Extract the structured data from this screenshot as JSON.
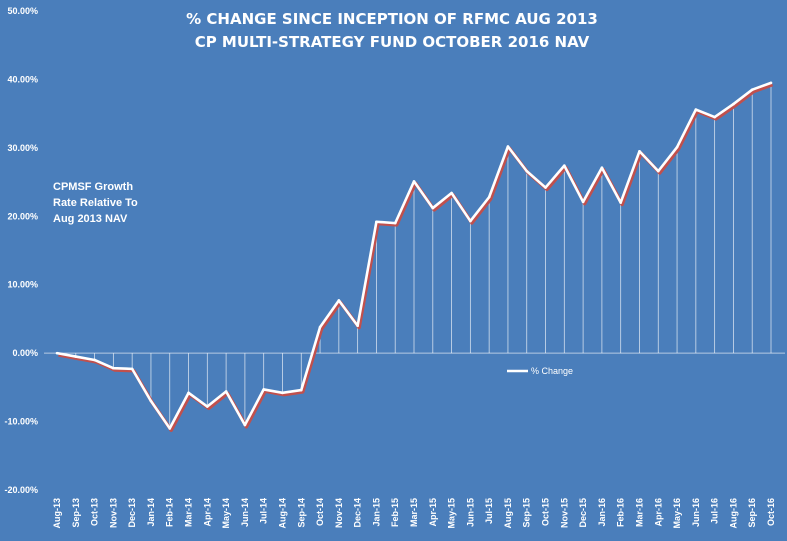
{
  "chart_data": {
    "type": "line",
    "title_lines": [
      "% CHANGE SINCE INCEPTION OF RFMC AUG 2013",
      "CP MULTI-STRATEGY FUND OCTOBER 2016 NAV"
    ],
    "annotation_lines": [
      "CPMSF Growth",
      "Rate Relative To",
      "Aug  2013 NAV"
    ],
    "legend": {
      "position": "center-right",
      "entries": [
        "% Change"
      ]
    },
    "x": [
      "Aug-13",
      "Sep-13",
      "Oct-13",
      "Nov-13",
      "Dec-13",
      "Jan-14",
      "Feb-14",
      "Mar-14",
      "Apr-14",
      "May-14",
      "Jun-14",
      "Jul-14",
      "Aug-14",
      "Sep-14",
      "Oct-14",
      "Nov-14",
      "Dec-14",
      "Jan-15",
      "Feb-15",
      "Mar-15",
      "Apr-15",
      "May-15",
      "Jun-15",
      "Jul-15",
      "Aug-15",
      "Sep-15",
      "Oct-15",
      "Nov-15",
      "Dec-15",
      "Jan-16",
      "Feb-16",
      "Mar-16",
      "Apr-16",
      "May-16",
      "Jun-16",
      "Jul-16",
      "Aug-16",
      "Sep-16",
      "Oct-16"
    ],
    "series": [
      {
        "name": "% Change",
        "values": [
          0.0,
          -0.5,
          -1.0,
          -2.2,
          -2.3,
          -7.0,
          -11.0,
          -5.8,
          -7.8,
          -5.6,
          -10.5,
          -5.3,
          -5.8,
          -5.4,
          3.8,
          7.7,
          4.0,
          19.2,
          19.0,
          25.1,
          21.2,
          23.4,
          19.3,
          22.8,
          30.2,
          26.6,
          24.2,
          27.4,
          22.1,
          27.1,
          22.0,
          29.5,
          26.6,
          30.1,
          35.6,
          34.5,
          36.4,
          38.5,
          39.5
        ]
      }
    ],
    "yticks": [
      "50.00%",
      "40.00%",
      "30.00%",
      "20.00%",
      "10.00%",
      "0.00%",
      "-10.00%",
      "-20.00%"
    ],
    "ylim": [
      -20,
      50
    ],
    "grid": false,
    "colors": {
      "background": "#4a7ebb",
      "line": "#ffffff",
      "line_shadow": "#c0504d",
      "drop_lines": "#ffffff",
      "text": "#ffffff"
    }
  }
}
